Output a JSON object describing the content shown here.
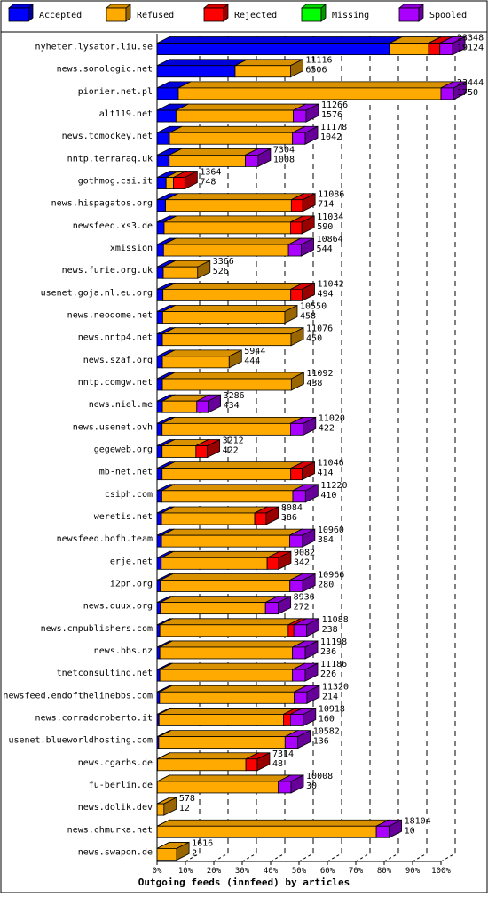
{
  "chart_data": {
    "type": "bar",
    "stacked": true,
    "orientation": "horizontal",
    "title": "",
    "xlabel": "Outgoing feeds (innfeed) by articles",
    "ylabel": "",
    "xlim": [
      0,
      100
    ],
    "x_unit": "%",
    "grid": true,
    "legend_position": "top",
    "xticks": [
      "0%",
      "10%",
      "20%",
      "30%",
      "40%",
      "50%",
      "60%",
      "70%",
      "80%",
      "90%",
      "100%"
    ],
    "legend": [
      {
        "name": "Accepted",
        "color": "#0000ff"
      },
      {
        "name": "Refused",
        "color": "#ffaa00"
      },
      {
        "name": "Rejected",
        "color": "#ff0000"
      },
      {
        "name": "Missing",
        "color": "#00ff00"
      },
      {
        "name": "Spooled",
        "color": "#aa00ff"
      }
    ],
    "rows": [
      {
        "host": "nyheter.lysator.liu.se",
        "offered": "23348",
        "accepted": "19124",
        "pct": {
          "accepted": 81.9,
          "refused": 13.7,
          "rejected": 4.0,
          "missing": 0,
          "spooled": 4.5
        }
      },
      {
        "host": "news.sonologic.net",
        "offered": "11116",
        "accepted": "6506",
        "pct": {
          "accepted": 27.5,
          "refused": 19.5,
          "rejected": 0,
          "missing": 0,
          "spooled": 0
        }
      },
      {
        "host": "pionier.net.pl",
        "offered": "23444",
        "accepted": "1750",
        "pct": {
          "accepted": 7.5,
          "refused": 92.5,
          "rejected": 0,
          "missing": 0,
          "spooled": 4.5
        }
      },
      {
        "host": "alt119.net",
        "offered": "11266",
        "accepted": "1576",
        "pct": {
          "accepted": 6.7,
          "refused": 41.3,
          "rejected": 0,
          "missing": 0,
          "spooled": 4.5
        }
      },
      {
        "host": "news.tomockey.net",
        "offered": "11178",
        "accepted": "1042",
        "pct": {
          "accepted": 4.4,
          "refused": 43.3,
          "rejected": 0,
          "missing": 0,
          "spooled": 4.5
        }
      },
      {
        "host": "nntp.terraraq.uk",
        "offered": "7304",
        "accepted": "1008",
        "pct": {
          "accepted": 4.3,
          "refused": 26.8,
          "rejected": 0,
          "missing": 0,
          "spooled": 4.5
        }
      },
      {
        "host": "gothmog.csi.it",
        "offered": "1364",
        "accepted": "748",
        "pct": {
          "accepted": 3.2,
          "refused": 2.6,
          "rejected": 4.0,
          "missing": 0,
          "spooled": 0
        }
      },
      {
        "host": "news.hispagatos.org",
        "offered": "11086",
        "accepted": "714",
        "pct": {
          "accepted": 3.0,
          "refused": 44.3,
          "rejected": 4.0,
          "missing": 0,
          "spooled": 0
        }
      },
      {
        "host": "newsfeed.xs3.de",
        "offered": "11034",
        "accepted": "590",
        "pct": {
          "accepted": 2.5,
          "refused": 44.5,
          "rejected": 4.0,
          "missing": 0,
          "spooled": 0
        }
      },
      {
        "host": "xmission",
        "offered": "10864",
        "accepted": "544",
        "pct": {
          "accepted": 2.3,
          "refused": 44.0,
          "rejected": 0,
          "missing": 0,
          "spooled": 4.5
        }
      },
      {
        "host": "news.furie.org.uk",
        "offered": "3366",
        "accepted": "526",
        "pct": {
          "accepted": 2.2,
          "refused": 12.1,
          "rejected": 0,
          "missing": 0,
          "spooled": 0
        }
      },
      {
        "host": "usenet.goja.nl.eu.org",
        "offered": "11042",
        "accepted": "494",
        "pct": {
          "accepted": 2.1,
          "refused": 45.0,
          "rejected": 4.0,
          "missing": 0,
          "spooled": 0
        }
      },
      {
        "host": "news.neodome.net",
        "offered": "10550",
        "accepted": "458",
        "pct": {
          "accepted": 2.0,
          "refused": 43.0,
          "rejected": 0,
          "missing": 0,
          "spooled": 0
        }
      },
      {
        "host": "news.nntp4.net",
        "offered": "11076",
        "accepted": "450",
        "pct": {
          "accepted": 1.9,
          "refused": 45.3,
          "rejected": 0,
          "missing": 0,
          "spooled": 0
        }
      },
      {
        "host": "news.szaf.org",
        "offered": "5944",
        "accepted": "444",
        "pct": {
          "accepted": 1.9,
          "refused": 23.5,
          "rejected": 0,
          "missing": 0,
          "spooled": 0
        }
      },
      {
        "host": "nntp.comgw.net",
        "offered": "11092",
        "accepted": "438",
        "pct": {
          "accepted": 1.9,
          "refused": 45.4,
          "rejected": 0,
          "missing": 0,
          "spooled": 0
        }
      },
      {
        "host": "news.niel.me",
        "offered": "3286",
        "accepted": "434",
        "pct": {
          "accepted": 1.9,
          "refused": 12.1,
          "rejected": 0,
          "missing": 0,
          "spooled": 4.0
        }
      },
      {
        "host": "news.usenet.ovh",
        "offered": "11020",
        "accepted": "422",
        "pct": {
          "accepted": 1.8,
          "refused": 45.2,
          "rejected": 0,
          "missing": 0,
          "spooled": 4.5
        }
      },
      {
        "host": "gegeweb.org",
        "offered": "3212",
        "accepted": "422",
        "pct": {
          "accepted": 1.8,
          "refused": 11.9,
          "rejected": 4.0,
          "missing": 0,
          "spooled": 0
        }
      },
      {
        "host": "mb-net.net",
        "offered": "11046",
        "accepted": "414",
        "pct": {
          "accepted": 1.8,
          "refused": 45.3,
          "rejected": 4.0,
          "missing": 0,
          "spooled": 0
        }
      },
      {
        "host": "csiph.com",
        "offered": "11220",
        "accepted": "410",
        "pct": {
          "accepted": 1.7,
          "refused": 46.1,
          "rejected": 0,
          "missing": 0,
          "spooled": 4.5
        }
      },
      {
        "host": "weretis.net",
        "offered": "8084",
        "accepted": "386",
        "pct": {
          "accepted": 1.6,
          "refused": 32.8,
          "rejected": 4.0,
          "missing": 0,
          "spooled": 0
        }
      },
      {
        "host": "newsfeed.bofh.team",
        "offered": "10960",
        "accepted": "384",
        "pct": {
          "accepted": 1.6,
          "refused": 45.1,
          "rejected": 0,
          "missing": 0,
          "spooled": 4.5
        }
      },
      {
        "host": "erje.net",
        "offered": "9082",
        "accepted": "342",
        "pct": {
          "accepted": 1.5,
          "refused": 37.3,
          "rejected": 4.0,
          "missing": 0,
          "spooled": 0
        }
      },
      {
        "host": "i2pn.org",
        "offered": "10966",
        "accepted": "280",
        "pct": {
          "accepted": 1.2,
          "refused": 45.6,
          "rejected": 0,
          "missing": 0,
          "spooled": 4.5
        }
      },
      {
        "host": "news.quux.org",
        "offered": "8936",
        "accepted": "272",
        "pct": {
          "accepted": 1.2,
          "refused": 37.0,
          "rejected": 0,
          "missing": 0,
          "spooled": 4.5
        }
      },
      {
        "host": "news.cmpublishers.com",
        "offered": "11088",
        "accepted": "238",
        "pct": {
          "accepted": 1.0,
          "refused": 45.2,
          "rejected": 2.0,
          "missing": 0,
          "spooled": 4.5
        }
      },
      {
        "host": "news.bbs.nz",
        "offered": "11198",
        "accepted": "236",
        "pct": {
          "accepted": 1.0,
          "refused": 46.7,
          "rejected": 0,
          "missing": 0,
          "spooled": 4.5
        }
      },
      {
        "host": "tnetconsulting.net",
        "offered": "11186",
        "accepted": "226",
        "pct": {
          "accepted": 1.0,
          "refused": 46.7,
          "rejected": 0,
          "missing": 0,
          "spooled": 4.5
        }
      },
      {
        "host": "newsfeed.endofthelinebbs.com",
        "offered": "11320",
        "accepted": "214",
        "pct": {
          "accepted": 0.9,
          "refused": 47.4,
          "rejected": 0,
          "missing": 0,
          "spooled": 4.5
        }
      },
      {
        "host": "news.corradoroberto.it",
        "offered": "10918",
        "accepted": "160",
        "pct": {
          "accepted": 0.7,
          "refused": 43.8,
          "rejected": 2.5,
          "missing": 0,
          "spooled": 4.5
        }
      },
      {
        "host": "usenet.blueworldhosting.com",
        "offered": "10582",
        "accepted": "136",
        "pct": {
          "accepted": 0.6,
          "refused": 44.5,
          "rejected": 0,
          "missing": 0,
          "spooled": 4.5
        }
      },
      {
        "host": "news.cgarbs.de",
        "offered": "7314",
        "accepted": "48",
        "pct": {
          "accepted": 0.2,
          "refused": 31.1,
          "rejected": 4.0,
          "missing": 0,
          "spooled": 0
        }
      },
      {
        "host": "fu-berlin.de",
        "offered": "10008",
        "accepted": "30",
        "pct": {
          "accepted": 0.1,
          "refused": 42.6,
          "rejected": 0,
          "missing": 0,
          "spooled": 4.5
        }
      },
      {
        "host": "news.dolik.dev",
        "offered": "578",
        "accepted": "12",
        "pct": {
          "accepted": 0.05,
          "refused": 2.4,
          "rejected": 0,
          "missing": 0,
          "spooled": 0
        }
      },
      {
        "host": "news.chmurka.net",
        "offered": "18104",
        "accepted": "10",
        "pct": {
          "accepted": 0.04,
          "refused": 77.2,
          "rejected": 0,
          "missing": 0,
          "spooled": 4.5
        }
      },
      {
        "host": "news.swapon.de",
        "offered": "1616",
        "accepted": "2",
        "pct": {
          "accepted": 0.01,
          "refused": 6.9,
          "rejected": 0,
          "missing": 0,
          "spooled": 0
        }
      }
    ]
  }
}
